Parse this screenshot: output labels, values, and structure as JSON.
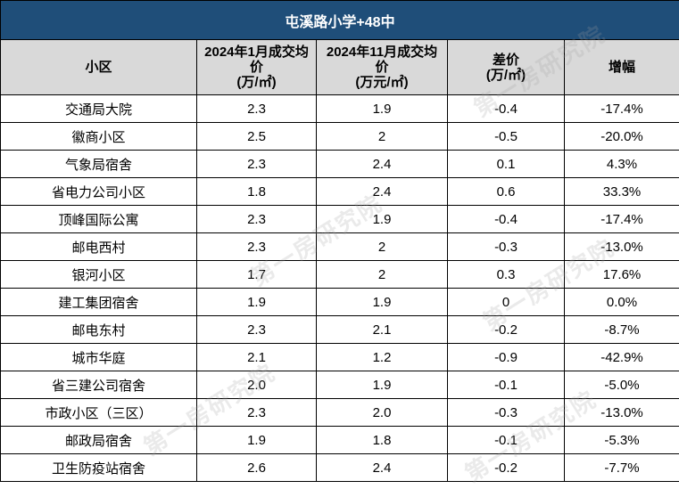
{
  "title": "屯溪路小学+48中",
  "headers": [
    "小区",
    "2024年1月成交均价\n(万/㎡)",
    "2024年11月成交均价\n(万元/㎡)",
    "差价\n(万/㎡)",
    "增幅"
  ],
  "header_lines": [
    [
      "小区"
    ],
    [
      "2024年1月成交均",
      "价",
      "(万/㎡)"
    ],
    [
      "2024年11月成交均",
      "价",
      "(万元/㎡)"
    ],
    [
      "差价",
      "(万/㎡)"
    ],
    [
      "增幅"
    ]
  ],
  "rows": [
    {
      "name": "交通局大院",
      "jan": "2.3",
      "nov": "1.9",
      "diff": "-0.4",
      "pct": "-17.4%",
      "trend": "neg"
    },
    {
      "name": "徽商小区",
      "jan": "2.5",
      "nov": "2",
      "diff": "-0.5",
      "pct": "-20.0%",
      "trend": "neg"
    },
    {
      "name": "气象局宿舍",
      "jan": "2.3",
      "nov": "2.4",
      "diff": "0.1",
      "pct": "4.3%",
      "trend": "pos"
    },
    {
      "name": "省电力公司小区",
      "jan": "1.8",
      "nov": "2.4",
      "diff": "0.6",
      "pct": "33.3%",
      "trend": "pos"
    },
    {
      "name": "顶峰国际公寓",
      "jan": "2.3",
      "nov": "1.9",
      "diff": "-0.4",
      "pct": "-17.4%",
      "trend": "neg"
    },
    {
      "name": "邮电西村",
      "jan": "2.3",
      "nov": "2",
      "diff": "-0.3",
      "pct": "-13.0%",
      "trend": "neg"
    },
    {
      "name": "银河小区",
      "jan": "1.7",
      "nov": "2",
      "diff": "0.3",
      "pct": "17.6%",
      "trend": "pos"
    },
    {
      "name": "建工集团宿舍",
      "jan": "1.9",
      "nov": "1.9",
      "diff": "0",
      "pct": "0.0%",
      "trend": "pos"
    },
    {
      "name": "邮电东村",
      "jan": "2.3",
      "nov": "2.1",
      "diff": "-0.2",
      "pct": "-8.7%",
      "trend": "neg"
    },
    {
      "name": "城市华庭",
      "jan": "2.1",
      "nov": "1.2",
      "diff": "-0.9",
      "pct": "-42.9%",
      "trend": "neg"
    },
    {
      "name": "省三建公司宿舍",
      "jan": "2.0",
      "nov": "1.9",
      "diff": "-0.1",
      "pct": "-5.0%",
      "trend": "neg"
    },
    {
      "name": "市政小区（三区）",
      "jan": "2.3",
      "nov": "2.0",
      "diff": "-0.3",
      "pct": "-13.0%",
      "trend": "neg"
    },
    {
      "name": "邮政局宿舍",
      "jan": "1.9",
      "nov": "1.8",
      "diff": "-0.1",
      "pct": "-5.3%",
      "trend": "neg"
    },
    {
      "name": "卫生防疫站宿舍",
      "jan": "2.6",
      "nov": "2.4",
      "diff": "-0.2",
      "pct": "-7.7%",
      "trend": "neg"
    }
  ],
  "colors": {
    "header_bg": "#1f4e79",
    "subheader_bg": "#d9d9d9",
    "negative": "#00b050",
    "positive": "#c00000"
  },
  "watermark": "第一房研究院"
}
